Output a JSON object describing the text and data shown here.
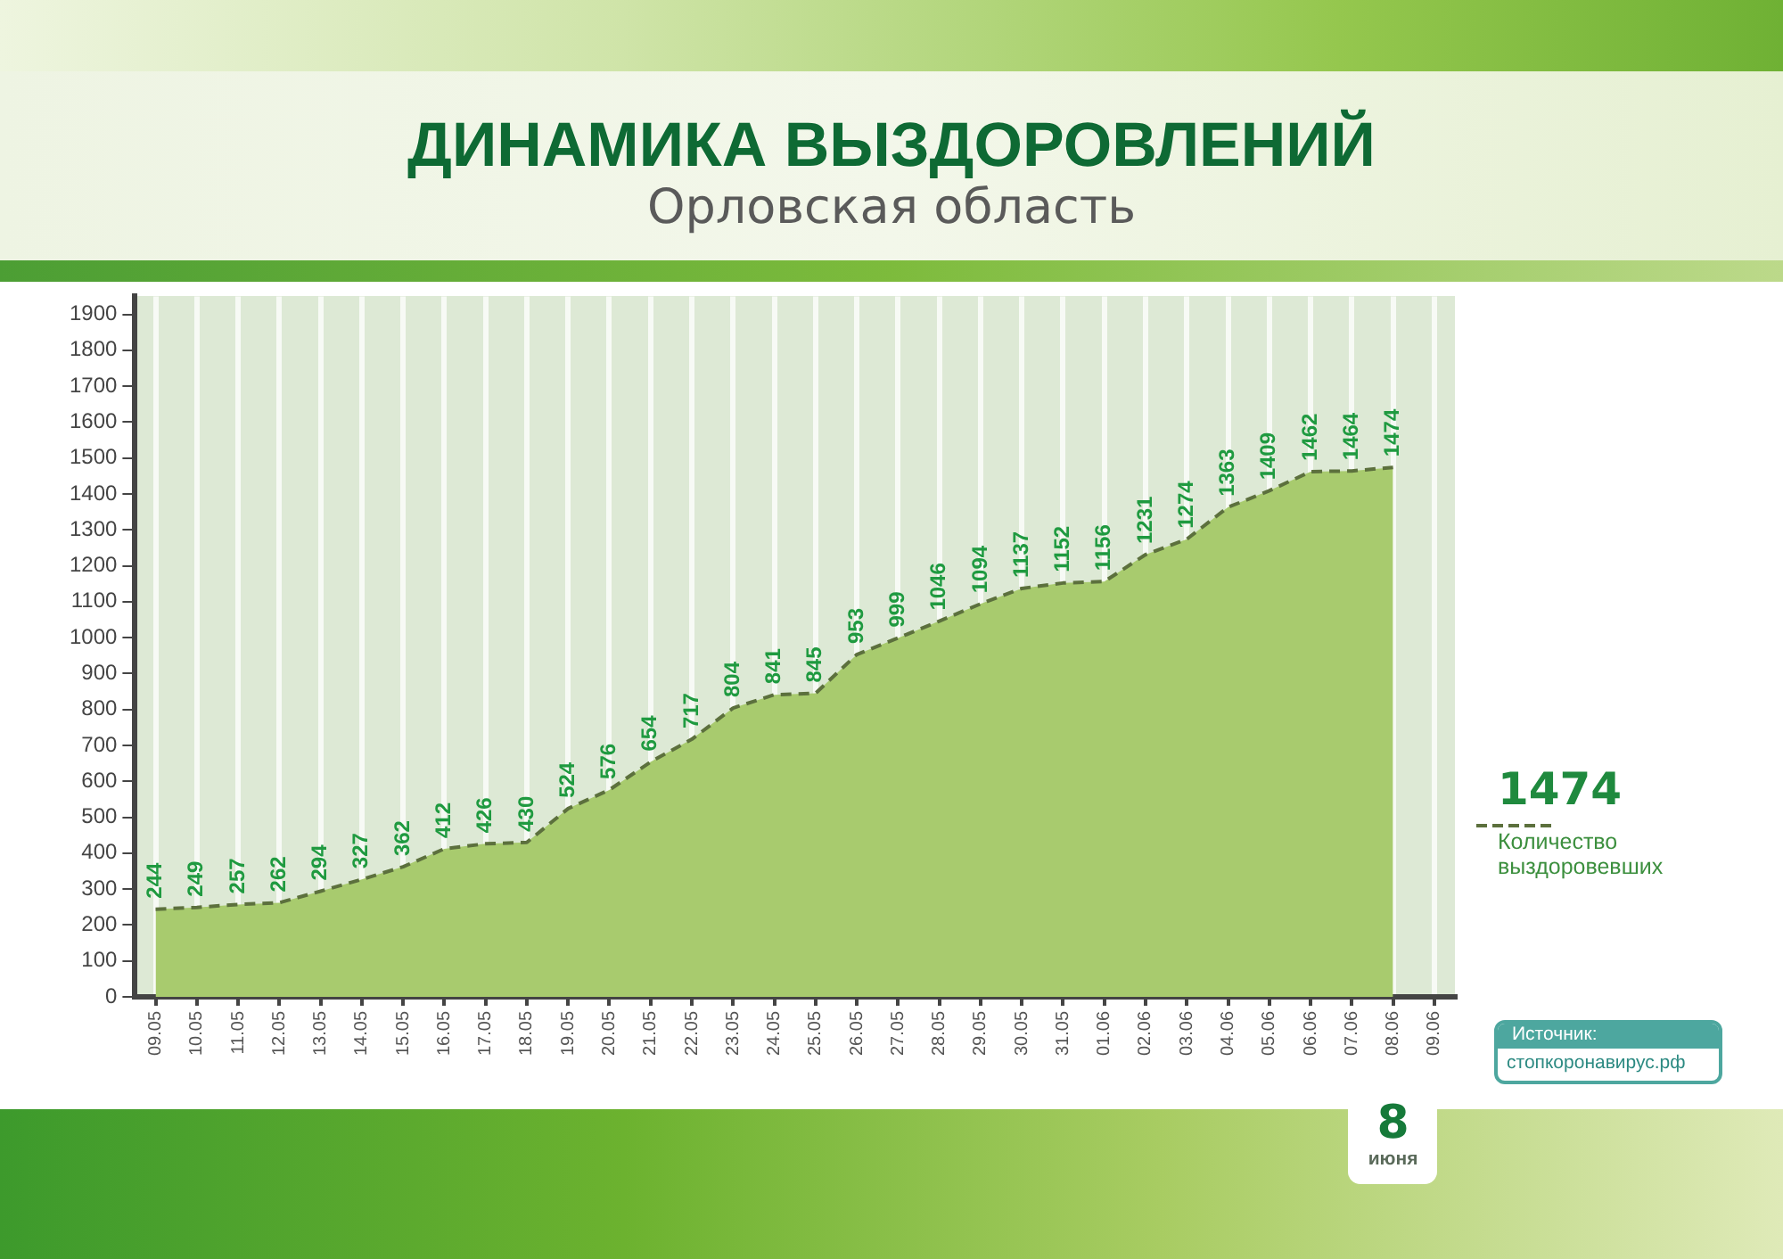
{
  "chart_data": {
    "type": "area",
    "title": "ДИНАМИКА ВЫЗДОРОВЛЕНИЙ",
    "subtitle": "Орловская область",
    "categories": [
      "09.05",
      "10.05",
      "11.05",
      "12.05",
      "13.05",
      "14.05",
      "15.05",
      "16.05",
      "17.05",
      "18.05",
      "19.05",
      "20.05",
      "21.05",
      "22.05",
      "23.05",
      "24.05",
      "25.05",
      "26.05",
      "27.05",
      "28.05",
      "29.05",
      "30.05",
      "31.05",
      "01.06",
      "02.06",
      "03.06",
      "04.06",
      "05.06",
      "06.06",
      "07.06",
      "08.06",
      "09.06"
    ],
    "series": [
      {
        "name": "Количество выздоровевших",
        "color": "#a8cb6e",
        "values": [
          244,
          249,
          257,
          262,
          294,
          327,
          362,
          412,
          426,
          430,
          524,
          576,
          654,
          717,
          804,
          841,
          845,
          953,
          999,
          1046,
          1094,
          1137,
          1152,
          1156,
          1231,
          1274,
          1363,
          1409,
          1462,
          1464,
          1474,
          null
        ]
      }
    ],
    "ylim": [
      0,
      1950
    ],
    "yticks": [
      0,
      100,
      200,
      300,
      400,
      500,
      600,
      700,
      800,
      900,
      1000,
      1100,
      1200,
      1300,
      1400,
      1500,
      1600,
      1700,
      1800,
      1900
    ],
    "grid": "x",
    "legend": "right",
    "marker": "none",
    "line_style": "dashed",
    "data_labels": true,
    "annotations": [
      "1474",
      "8 июня",
      "Источник:",
      "стопкоронавирус.рф"
    ]
  }
}
